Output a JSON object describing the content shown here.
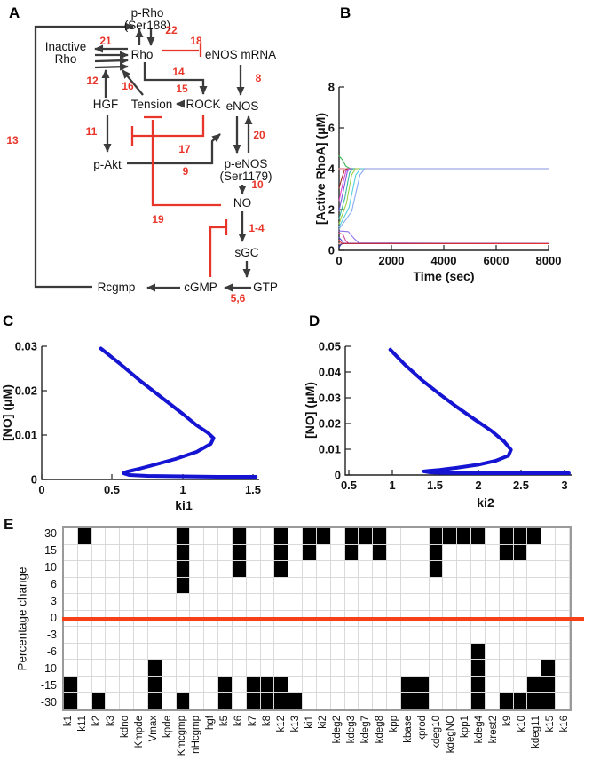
{
  "panels": {
    "a": "A",
    "b": "B",
    "c": "C",
    "d": "D",
    "e": "E"
  },
  "panel_a": {
    "nodes": {
      "p_rho_1": "p-Rho",
      "p_rho_2": "(Ser188)",
      "inactive_1": "Inactive",
      "inactive_2": "Rho",
      "rho": "Rho",
      "enos_mrna": "eNOS mRNA",
      "hgf": "HGF",
      "tension": "Tension",
      "rock": "ROCK",
      "enos": "eNOS",
      "p_akt": "p-Akt",
      "p_enos_1": "p-eNOS",
      "p_enos_2": "(Ser1179)",
      "no": "NO",
      "sgc": "sGC",
      "rcgmp": "Rcgmp",
      "cgmp": "cGMP",
      "gtp": "GTP"
    },
    "numbers": {
      "n21": "21",
      "n22": "22",
      "n18": "18",
      "n14": "14",
      "n12": "12",
      "n16": "16",
      "n15": "15",
      "n8": "8",
      "n13": "13",
      "n11": "11",
      "n17": "17",
      "n20": "20",
      "n9": "9",
      "n10": "10",
      "n19": "19",
      "n1_4": "1-4",
      "n5_6": "5,6"
    },
    "colors": {
      "arrow": "#3b3b3b",
      "inhibit": "#e8352a"
    }
  },
  "chart_data": [
    {
      "id": "B",
      "type": "line",
      "title": "",
      "xlabel": "Time (sec)",
      "ylabel": "[Active RhoA] (μM)",
      "xlim": [
        0,
        8000
      ],
      "ylim": [
        0,
        8
      ],
      "xticks": [
        "0",
        "2000",
        "4000",
        "6000",
        "8000"
      ],
      "yticks": [
        "0",
        "2",
        "4",
        "6",
        "8"
      ],
      "legend": "none",
      "grid": false,
      "series": [
        {
          "color": "#f598a8",
          "width": 1.3,
          "points": [
            [
              0,
              4.0
            ],
            [
              8000,
              4.0
            ]
          ]
        },
        {
          "color": "#f59898",
          "width": 1.3,
          "points": [
            [
              0,
              0.33
            ],
            [
              8000,
              0.33
            ]
          ]
        },
        {
          "color": "#3cb450",
          "width": 1.1,
          "points": [
            [
              0,
              4.62
            ],
            [
              120,
              4.45
            ],
            [
              260,
              4.12
            ],
            [
              420,
              4.01
            ],
            [
              600,
              4.0
            ],
            [
              8000,
              4.0
            ]
          ]
        },
        {
          "color": "#a03028",
          "width": 1.1,
          "points": [
            [
              0,
              3.05
            ],
            [
              110,
              3.55
            ],
            [
              210,
              3.93
            ],
            [
              320,
              4.0
            ],
            [
              8000,
              4.0
            ]
          ]
        },
        {
          "color": "#e048c8",
          "width": 1.1,
          "points": [
            [
              0,
              2.45
            ],
            [
              140,
              3.25
            ],
            [
              260,
              3.88
            ],
            [
              370,
              4.0
            ],
            [
              8000,
              4.0
            ]
          ]
        },
        {
          "color": "#7a5ae0",
          "width": 1.1,
          "points": [
            [
              0,
              1.95
            ],
            [
              170,
              2.95
            ],
            [
              320,
              3.88
            ],
            [
              440,
              4.0
            ],
            [
              8000,
              4.0
            ]
          ]
        },
        {
          "color": "#38b89c",
          "width": 1.1,
          "points": [
            [
              0,
              1.55
            ],
            [
              220,
              2.55
            ],
            [
              400,
              3.8
            ],
            [
              530,
              4.0
            ],
            [
              8000,
              4.0
            ]
          ]
        },
        {
          "color": "#9cd048",
          "width": 1.1,
          "points": [
            [
              0,
              1.3
            ],
            [
              280,
              2.3
            ],
            [
              480,
              3.7
            ],
            [
              630,
              4.0
            ],
            [
              8000,
              4.0
            ]
          ]
        },
        {
          "color": "#50d0dc",
          "width": 1.1,
          "points": [
            [
              0,
              1.15
            ],
            [
              380,
              2.1
            ],
            [
              640,
              3.7
            ],
            [
              820,
              4.0
            ],
            [
              8000,
              4.0
            ]
          ]
        },
        {
          "color": "#88aaf4",
          "width": 1.1,
          "points": [
            [
              0,
              1.05
            ],
            [
              480,
              1.9
            ],
            [
              800,
              3.7
            ],
            [
              980,
              4.0
            ],
            [
              8000,
              4.0
            ]
          ]
        },
        {
          "color": "#9070ec",
          "width": 1.1,
          "points": [
            [
              0,
              0.95
            ],
            [
              350,
              0.92
            ],
            [
              560,
              0.6
            ],
            [
              760,
              0.36
            ],
            [
              8000,
              0.33
            ]
          ]
        },
        {
          "color": "#d84898",
          "width": 1.1,
          "points": [
            [
              0,
              0.85
            ],
            [
              150,
              0.78
            ],
            [
              260,
              0.45
            ],
            [
              370,
              0.34
            ],
            [
              8000,
              0.33
            ]
          ]
        },
        {
          "color": "#4848d8",
          "width": 1.1,
          "points": [
            [
              0,
              0.62
            ],
            [
              90,
              0.5
            ],
            [
              180,
              0.35
            ],
            [
              8000,
              0.33
            ]
          ]
        },
        {
          "color": "#282890",
          "width": 1.1,
          "points": [
            [
              0,
              0.15
            ],
            [
              60,
              0.28
            ],
            [
              140,
              0.33
            ],
            [
              8000,
              0.33
            ]
          ]
        },
        {
          "color": "#e83030",
          "width": 1.1,
          "points": [
            [
              0,
              0.5
            ],
            [
              60,
              0.4
            ],
            [
              130,
              0.34
            ],
            [
              8000,
              0.33
            ]
          ]
        }
      ]
    },
    {
      "id": "C",
      "type": "line",
      "title": "",
      "xlabel": "ki1",
      "ylabel": "[NO] (μM)",
      "xlim": [
        0,
        1.5
      ],
      "ylim": [
        0,
        0.03
      ],
      "xticks": [
        "0",
        "0.5",
        "1",
        "1.5"
      ],
      "yticks": [
        "0",
        "0.01",
        "0.02",
        "0.03"
      ],
      "legend": "none",
      "grid": false,
      "series": [
        {
          "color": "#1414d2",
          "width": 4,
          "points": [
            [
              0.42,
              0.0295
            ],
            [
              0.55,
              0.0262
            ],
            [
              0.7,
              0.0222
            ],
            [
              0.85,
              0.0185
            ],
            [
              1.0,
              0.0148
            ],
            [
              1.1,
              0.0122
            ],
            [
              1.18,
              0.0105
            ],
            [
              1.22,
              0.0093
            ],
            [
              1.2,
              0.008
            ],
            [
              1.1,
              0.0062
            ],
            [
              0.95,
              0.0046
            ],
            [
              0.8,
              0.0033
            ],
            [
              0.68,
              0.0023
            ],
            [
              0.6,
              0.0017
            ],
            [
              0.58,
              0.0014
            ],
            [
              0.62,
              0.001
            ],
            [
              0.75,
              0.0008
            ],
            [
              1.0,
              0.0007
            ],
            [
              1.25,
              0.0006
            ],
            [
              1.52,
              0.0006
            ]
          ]
        }
      ]
    },
    {
      "id": "D",
      "type": "line",
      "title": "",
      "xlabel": "ki2",
      "ylabel": "[NO] (μM)",
      "xlim": [
        0.5,
        3.0
      ],
      "ylim": [
        0,
        0.05
      ],
      "xticks": [
        "0.5",
        "1",
        "1.5",
        "2",
        "2.5",
        "3"
      ],
      "yticks": [
        "0",
        "0.01",
        "0.02",
        "0.03",
        "0.04",
        "0.05"
      ],
      "legend": "none",
      "grid": false,
      "series": [
        {
          "color": "#1414d2",
          "width": 4,
          "points": [
            [
              0.98,
              0.0487
            ],
            [
              1.15,
              0.0428
            ],
            [
              1.35,
              0.0368
            ],
            [
              1.55,
              0.0315
            ],
            [
              1.75,
              0.0265
            ],
            [
              1.95,
              0.0218
            ],
            [
              2.15,
              0.0172
            ],
            [
              2.3,
              0.013
            ],
            [
              2.38,
              0.0098
            ],
            [
              2.35,
              0.0075
            ],
            [
              2.2,
              0.0055
            ],
            [
              2.0,
              0.004
            ],
            [
              1.75,
              0.0028
            ],
            [
              1.55,
              0.002
            ],
            [
              1.42,
              0.0016
            ],
            [
              1.37,
              0.0014
            ],
            [
              1.45,
              0.001
            ],
            [
              1.6,
              0.0008
            ],
            [
              2.0,
              0.0007
            ],
            [
              2.5,
              0.0007
            ],
            [
              3.05,
              0.0007
            ]
          ]
        }
      ]
    },
    {
      "id": "E",
      "type": "heatmap",
      "ylabel": "Percentage change",
      "row_values": [
        "30",
        "15",
        "10",
        "6",
        "3",
        "0",
        "-3",
        "-6",
        "-10",
        "-15",
        "-30"
      ],
      "zero_row_index": 5,
      "zero_line_color": "#f84018",
      "cell_color": "#000000",
      "grid_color": "#d9d9d9",
      "columns": [
        {
          "label": "k1",
          "filled_rows": [
            9,
            10
          ]
        },
        {
          "label": "k11",
          "filled_rows": [
            0
          ]
        },
        {
          "label": "k2",
          "filled_rows": [
            10
          ]
        },
        {
          "label": "k3",
          "filled_rows": []
        },
        {
          "label": "kdno",
          "filled_rows": []
        },
        {
          "label": "Kmpde",
          "filled_rows": []
        },
        {
          "label": "Vmax",
          "filled_rows": [
            8,
            9,
            10
          ]
        },
        {
          "label": "kpde",
          "filled_rows": []
        },
        {
          "label": "Kmcgmp",
          "filled_rows": [
            0,
            1,
            2,
            3,
            10
          ]
        },
        {
          "label": "nHcgmp",
          "filled_rows": []
        },
        {
          "label": "hgf",
          "filled_rows": []
        },
        {
          "label": "k5",
          "filled_rows": [
            9,
            10
          ]
        },
        {
          "label": "k6",
          "filled_rows": [
            0,
            1,
            2
          ]
        },
        {
          "label": "k7",
          "filled_rows": [
            9,
            10
          ]
        },
        {
          "label": "k8",
          "filled_rows": [
            9,
            10
          ]
        },
        {
          "label": "k12",
          "filled_rows": [
            0,
            1,
            2,
            9,
            10
          ]
        },
        {
          "label": "k13",
          "filled_rows": [
            10
          ]
        },
        {
          "label": "ki1",
          "filled_rows": [
            0,
            1
          ]
        },
        {
          "label": "ki2",
          "filled_rows": [
            0
          ]
        },
        {
          "label": "kdeg2",
          "filled_rows": []
        },
        {
          "label": "kdeg3",
          "filled_rows": [
            0,
            1
          ]
        },
        {
          "label": "kdeg7",
          "filled_rows": [
            0
          ]
        },
        {
          "label": "kdeg8",
          "filled_rows": [
            0,
            1
          ]
        },
        {
          "label": "kpp",
          "filled_rows": []
        },
        {
          "label": "kbase",
          "filled_rows": [
            9,
            10
          ]
        },
        {
          "label": "kprod",
          "filled_rows": [
            9,
            10
          ]
        },
        {
          "label": "kdeg10",
          "filled_rows": [
            0,
            1,
            2
          ]
        },
        {
          "label": "kdegNO",
          "filled_rows": [
            0
          ]
        },
        {
          "label": "kpp1",
          "filled_rows": [
            0
          ]
        },
        {
          "label": "kdeg4",
          "filled_rows": [
            0,
            7,
            8,
            9,
            10
          ]
        },
        {
          "label": "krest2",
          "filled_rows": []
        },
        {
          "label": "k9",
          "filled_rows": [
            0,
            1,
            10
          ]
        },
        {
          "label": "k10",
          "filled_rows": [
            0,
            1,
            10
          ]
        },
        {
          "label": "kdeg11",
          "filled_rows": [
            0,
            9,
            10
          ]
        },
        {
          "label": "k15",
          "filled_rows": [
            8,
            9,
            10
          ]
        },
        {
          "label": "k16",
          "filled_rows": []
        }
      ]
    }
  ]
}
